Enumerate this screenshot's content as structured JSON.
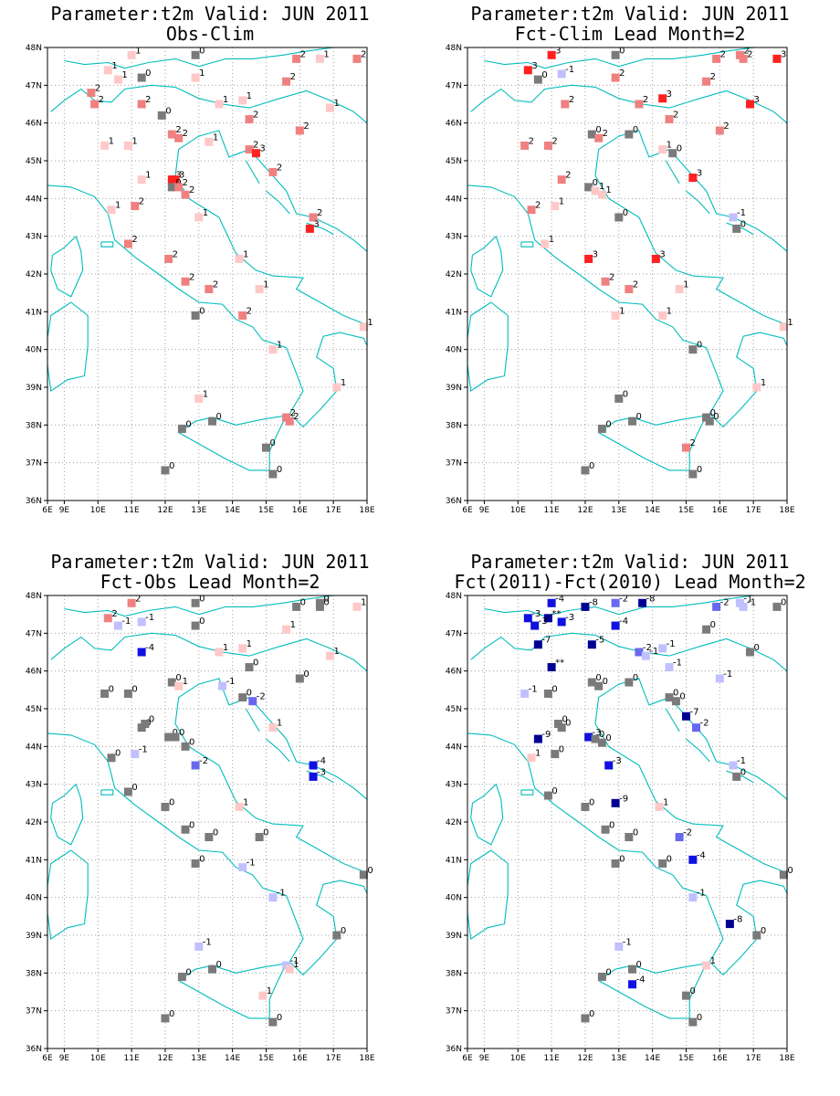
{
  "panels": [
    {
      "title1": "Parameter:t2m Valid: JUN 2011",
      "title2": "Obs-Clim",
      "stations": [
        [
          11.0,
          47.8,
          "1"
        ],
        [
          12.9,
          47.8,
          "0"
        ],
        [
          15.9,
          47.7,
          "2"
        ],
        [
          16.6,
          47.7,
          "1"
        ],
        [
          17.7,
          47.7,
          "2"
        ],
        [
          10.3,
          47.4,
          "1"
        ],
        [
          11.3,
          47.2,
          "0"
        ],
        [
          10.6,
          47.15,
          "1"
        ],
        [
          12.9,
          47.2,
          "1"
        ],
        [
          15.6,
          47.1,
          "2"
        ],
        [
          9.8,
          46.8,
          "2"
        ],
        [
          9.9,
          46.5,
          "2"
        ],
        [
          11.3,
          46.5,
          "2"
        ],
        [
          13.6,
          46.5,
          "1"
        ],
        [
          14.3,
          46.6,
          "1"
        ],
        [
          16.9,
          46.4,
          "1"
        ],
        [
          11.9,
          46.2,
          "0"
        ],
        [
          14.5,
          46.1,
          "2"
        ],
        [
          16.0,
          45.8,
          "2"
        ],
        [
          12.2,
          45.7,
          "2"
        ],
        [
          12.4,
          45.6,
          "2"
        ],
        [
          13.3,
          45.5,
          "1"
        ],
        [
          10.2,
          45.4,
          "1"
        ],
        [
          10.9,
          45.4,
          "1"
        ],
        [
          14.5,
          45.3,
          "2"
        ],
        [
          14.7,
          45.2,
          "3"
        ],
        [
          11.3,
          44.5,
          "1"
        ],
        [
          12.2,
          44.5,
          "3"
        ],
        [
          12.3,
          44.5,
          "3"
        ],
        [
          12.2,
          44.3,
          "0"
        ],
        [
          12.4,
          44.3,
          "2"
        ],
        [
          12.6,
          44.1,
          "2"
        ],
        [
          15.2,
          44.7,
          "2"
        ],
        [
          11.1,
          43.8,
          "2"
        ],
        [
          10.4,
          43.7,
          "1"
        ],
        [
          13.0,
          43.5,
          "1"
        ],
        [
          16.4,
          43.5,
          "2"
        ],
        [
          16.3,
          43.2,
          "3"
        ],
        [
          10.9,
          42.8,
          "2"
        ],
        [
          12.1,
          42.4,
          "2"
        ],
        [
          14.2,
          42.4,
          "1"
        ],
        [
          12.6,
          41.8,
          "2"
        ],
        [
          13.3,
          41.6,
          "2"
        ],
        [
          14.8,
          41.6,
          "1"
        ],
        [
          12.9,
          40.9,
          "0"
        ],
        [
          14.3,
          40.9,
          "2"
        ],
        [
          17.9,
          40.6,
          "1"
        ],
        [
          15.2,
          40.0,
          "1"
        ],
        [
          17.1,
          39.0,
          "1"
        ],
        [
          13.0,
          38.7,
          "1"
        ],
        [
          12.5,
          37.9,
          "0"
        ],
        [
          13.4,
          38.1,
          "0"
        ],
        [
          15.6,
          38.2,
          "2"
        ],
        [
          15.7,
          38.1,
          "2"
        ],
        [
          15.0,
          37.4,
          "0"
        ],
        [
          15.2,
          36.7,
          "0"
        ],
        [
          12.0,
          36.8,
          "0"
        ]
      ]
    },
    {
      "title1": "Parameter:t2m Valid: JUN 2011",
      "title2": "Fct-Clim Lead Month=2",
      "stations": [
        [
          11.0,
          47.8,
          "3"
        ],
        [
          12.9,
          47.8,
          "0"
        ],
        [
          15.9,
          47.7,
          "2"
        ],
        [
          16.6,
          47.8,
          "2"
        ],
        [
          16.7,
          47.7,
          "2"
        ],
        [
          17.7,
          47.7,
          "3"
        ],
        [
          10.3,
          47.4,
          "3"
        ],
        [
          11.3,
          47.3,
          "-1"
        ],
        [
          10.6,
          47.15,
          "0"
        ],
        [
          12.9,
          47.2,
          "2"
        ],
        [
          15.6,
          47.1,
          "2"
        ],
        [
          11.4,
          46.5,
          "2"
        ],
        [
          14.3,
          46.65,
          "3"
        ],
        [
          13.6,
          46.5,
          "2"
        ],
        [
          16.9,
          46.5,
          "3"
        ],
        [
          14.5,
          46.1,
          "2"
        ],
        [
          16.0,
          45.8,
          "2"
        ],
        [
          12.2,
          45.7,
          "0"
        ],
        [
          12.4,
          45.6,
          "2"
        ],
        [
          13.3,
          45.7,
          "0"
        ],
        [
          10.2,
          45.4,
          "2"
        ],
        [
          10.9,
          45.4,
          "2"
        ],
        [
          14.3,
          45.3,
          "1"
        ],
        [
          14.6,
          45.2,
          "0"
        ],
        [
          11.3,
          44.5,
          "2"
        ],
        [
          15.2,
          44.55,
          "3"
        ],
        [
          12.1,
          44.3,
          "0"
        ],
        [
          12.3,
          44.2,
          "1"
        ],
        [
          12.5,
          44.1,
          "1"
        ],
        [
          11.1,
          43.8,
          "1"
        ],
        [
          10.4,
          43.7,
          "2"
        ],
        [
          13.0,
          43.5,
          "0"
        ],
        [
          16.4,
          43.5,
          "-1"
        ],
        [
          16.5,
          43.2,
          "0"
        ],
        [
          10.8,
          42.8,
          "1"
        ],
        [
          12.1,
          42.4,
          "3"
        ],
        [
          14.1,
          42.4,
          "3"
        ],
        [
          12.6,
          41.8,
          "2"
        ],
        [
          13.3,
          41.6,
          "2"
        ],
        [
          14.8,
          41.6,
          "1"
        ],
        [
          12.9,
          40.9,
          "1"
        ],
        [
          14.3,
          40.9,
          "1"
        ],
        [
          17.9,
          40.6,
          "1"
        ],
        [
          15.2,
          40.0,
          "0"
        ],
        [
          17.1,
          39.0,
          "1"
        ],
        [
          13.0,
          38.7,
          "0"
        ],
        [
          12.5,
          37.9,
          "0"
        ],
        [
          13.4,
          38.1,
          "0"
        ],
        [
          15.6,
          38.2,
          "0"
        ],
        [
          15.7,
          38.1,
          "0"
        ],
        [
          15.0,
          37.4,
          "2"
        ],
        [
          15.2,
          36.7,
          "0"
        ],
        [
          12.0,
          36.8,
          "0"
        ]
      ]
    },
    {
      "title1": "Parameter:t2m Valid: JUN 2011",
      "title2": "Fct-Obs Lead Month=2",
      "stations": [
        [
          11.0,
          47.8,
          "2"
        ],
        [
          12.9,
          47.8,
          "0"
        ],
        [
          15.9,
          47.7,
          "0"
        ],
        [
          16.6,
          47.8,
          "0"
        ],
        [
          16.6,
          47.7,
          "0"
        ],
        [
          17.7,
          47.7,
          "1"
        ],
        [
          10.3,
          47.4,
          "2"
        ],
        [
          10.6,
          47.2,
          "-1"
        ],
        [
          11.3,
          47.3,
          "-1"
        ],
        [
          12.9,
          47.2,
          "0"
        ],
        [
          15.6,
          47.1,
          "1"
        ],
        [
          11.3,
          46.5,
          "-4"
        ],
        [
          13.6,
          46.5,
          "1"
        ],
        [
          14.3,
          46.6,
          "1"
        ],
        [
          16.9,
          46.4,
          "1"
        ],
        [
          14.5,
          46.1,
          "0"
        ],
        [
          16.0,
          45.8,
          "0"
        ],
        [
          12.2,
          45.7,
          "0"
        ],
        [
          12.4,
          45.6,
          "1"
        ],
        [
          13.7,
          45.6,
          "-1"
        ],
        [
          10.2,
          45.4,
          "0"
        ],
        [
          10.9,
          45.4,
          "0"
        ],
        [
          14.3,
          45.3,
          "0"
        ],
        [
          14.6,
          45.2,
          "-2"
        ],
        [
          11.3,
          44.5,
          "0"
        ],
        [
          11.4,
          44.6,
          "0"
        ],
        [
          15.2,
          44.5,
          "1"
        ],
        [
          12.1,
          44.25,
          "0"
        ],
        [
          12.3,
          44.25,
          "0"
        ],
        [
          12.6,
          44.0,
          "0"
        ],
        [
          11.1,
          43.8,
          "-1"
        ],
        [
          10.4,
          43.7,
          "0"
        ],
        [
          12.9,
          43.5,
          "-2"
        ],
        [
          16.4,
          43.5,
          "-4"
        ],
        [
          16.4,
          43.2,
          "-3"
        ],
        [
          10.9,
          42.8,
          "0"
        ],
        [
          12.0,
          42.4,
          "0"
        ],
        [
          14.2,
          42.4,
          "1"
        ],
        [
          12.6,
          41.8,
          "0"
        ],
        [
          13.3,
          41.6,
          "0"
        ],
        [
          14.8,
          41.6,
          "0"
        ],
        [
          12.9,
          40.9,
          "0"
        ],
        [
          14.3,
          40.8,
          "-1"
        ],
        [
          17.9,
          40.6,
          "0"
        ],
        [
          15.2,
          40.0,
          "-1"
        ],
        [
          17.1,
          39.0,
          "0"
        ],
        [
          13.0,
          38.7,
          "-1"
        ],
        [
          12.5,
          37.9,
          "0"
        ],
        [
          13.4,
          38.1,
          "0"
        ],
        [
          15.6,
          38.2,
          "-1"
        ],
        [
          15.7,
          38.1,
          "1"
        ],
        [
          14.9,
          37.4,
          "1"
        ],
        [
          15.2,
          36.7,
          "0"
        ],
        [
          12.0,
          36.8,
          "0"
        ]
      ]
    },
    {
      "title1": "Parameter:t2m Valid: JUN 2011",
      "title2": "Fct(2011)-Fct(2010) Lead Month=2",
      "stations": [
        [
          11.0,
          47.8,
          "-4"
        ],
        [
          12.0,
          47.7,
          "-8"
        ],
        [
          12.9,
          47.8,
          "-2"
        ],
        [
          13.7,
          47.8,
          "-8"
        ],
        [
          15.9,
          47.7,
          "-2"
        ],
        [
          16.6,
          47.8,
          "-1"
        ],
        [
          16.7,
          47.7,
          "-1"
        ],
        [
          17.7,
          47.7,
          "0"
        ],
        [
          10.3,
          47.4,
          "-3"
        ],
        [
          10.9,
          47.4,
          "**"
        ],
        [
          11.3,
          47.3,
          "-3"
        ],
        [
          10.5,
          47.2,
          "-3"
        ],
        [
          12.9,
          47.2,
          "-4"
        ],
        [
          15.6,
          47.1,
          "0"
        ],
        [
          10.6,
          46.7,
          "-7"
        ],
        [
          12.2,
          46.7,
          "-5"
        ],
        [
          13.6,
          46.5,
          "-2"
        ],
        [
          13.8,
          46.4,
          "-1"
        ],
        [
          14.3,
          46.6,
          "-1"
        ],
        [
          16.9,
          46.5,
          "0"
        ],
        [
          11.0,
          46.1,
          "**"
        ],
        [
          14.5,
          46.1,
          "-1"
        ],
        [
          16.0,
          45.8,
          "-1"
        ],
        [
          12.2,
          45.7,
          "0"
        ],
        [
          12.4,
          45.6,
          "0"
        ],
        [
          13.3,
          45.7,
          "0"
        ],
        [
          10.2,
          45.4,
          "-1"
        ],
        [
          10.9,
          45.4,
          "0"
        ],
        [
          14.5,
          45.3,
          "0"
        ],
        [
          14.7,
          45.2,
          "0"
        ],
        [
          15.0,
          44.8,
          "-7"
        ],
        [
          15.3,
          44.5,
          "-2"
        ],
        [
          11.3,
          44.5,
          "0"
        ],
        [
          11.2,
          44.6,
          "0"
        ],
        [
          10.6,
          44.2,
          "-9"
        ],
        [
          12.1,
          44.25,
          "-3"
        ],
        [
          12.3,
          44.2,
          "0"
        ],
        [
          12.5,
          44.1,
          "0"
        ],
        [
          11.1,
          43.8,
          "0"
        ],
        [
          10.4,
          43.7,
          "1"
        ],
        [
          12.7,
          43.5,
          "-3"
        ],
        [
          16.4,
          43.5,
          "-1"
        ],
        [
          16.5,
          43.2,
          "0"
        ],
        [
          10.9,
          42.7,
          "0"
        ],
        [
          12.0,
          42.4,
          "0"
        ],
        [
          12.9,
          42.5,
          "-9"
        ],
        [
          14.2,
          42.4,
          "1"
        ],
        [
          12.6,
          41.8,
          "0"
        ],
        [
          13.3,
          41.6,
          "0"
        ],
        [
          14.8,
          41.6,
          "-2"
        ],
        [
          15.2,
          41.0,
          "-4"
        ],
        [
          12.9,
          40.9,
          "0"
        ],
        [
          14.3,
          40.9,
          "0"
        ],
        [
          17.9,
          40.6,
          "0"
        ],
        [
          15.2,
          40.0,
          "-1"
        ],
        [
          16.3,
          39.3,
          "-8"
        ],
        [
          17.1,
          39.0,
          "0"
        ],
        [
          13.0,
          38.7,
          "-1"
        ],
        [
          12.5,
          37.9,
          "0"
        ],
        [
          13.4,
          38.1,
          "0"
        ],
        [
          13.4,
          37.7,
          "-4"
        ],
        [
          15.6,
          38.2,
          "1"
        ],
        [
          15.0,
          37.4,
          "0"
        ],
        [
          15.2,
          36.7,
          "0"
        ],
        [
          12.0,
          36.8,
          "0"
        ]
      ]
    }
  ],
  "axis": {
    "lon_labels": [
      "6E",
      "9E",
      "10E",
      "11E",
      "12E",
      "13E",
      "14E",
      "15E",
      "16E",
      "17E",
      "18E"
    ],
    "lat_labels": [
      "36N",
      "37N",
      "38N",
      "39N",
      "40N",
      "41N",
      "42N",
      "43N",
      "44N",
      "45N",
      "46N",
      "47N",
      "48N"
    ]
  },
  "colors": {
    "coast": "#00bcbc",
    "grid": "#a0a0a0",
    "zero": "#7a7a7a",
    "pos1": "#ffc8c8",
    "pos2": "#f08080",
    "pos3": "#ff2020",
    "neg1": "#c0c0ff",
    "neg2": "#6868ee",
    "neg3": "#1010e0",
    "neg4": "#000090"
  }
}
